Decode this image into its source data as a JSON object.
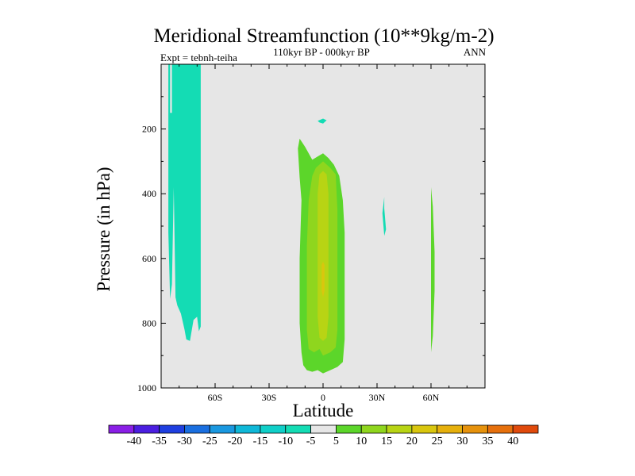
{
  "chart_data": {
    "type": "heatmap",
    "title": "Meridional Streamfunction (10**9kg/m-2)",
    "subtitle_left": "Expt = tebnh-teiha",
    "subtitle_center": "110kyr BP - 000kyr BP",
    "subtitle_right": "ANN",
    "xlabel": "Latitude",
    "ylabel": "Pressure (in hPa)",
    "xlim": [
      -90,
      90
    ],
    "ylim": [
      0,
      1000
    ],
    "y_reversed": true,
    "background_color": "#e6e6e6",
    "x_ticks": [
      {
        "value": -60,
        "label": "60S"
      },
      {
        "value": -30,
        "label": "30S"
      },
      {
        "value": 0,
        "label": "0"
      },
      {
        "value": 30,
        "label": "30N"
      },
      {
        "value": 60,
        "label": "60N"
      }
    ],
    "y_ticks": [
      {
        "value": 200,
        "label": "200"
      },
      {
        "value": 400,
        "label": "400"
      },
      {
        "value": 600,
        "label": "600"
      },
      {
        "value": 800,
        "label": "800"
      },
      {
        "value": 1000,
        "label": "1000"
      }
    ],
    "colorbar": {
      "levels": [
        -40,
        -35,
        -30,
        -25,
        -20,
        -15,
        -10,
        -5,
        5,
        10,
        15,
        20,
        25,
        30,
        35,
        40
      ],
      "colors": [
        "#8a1fe6",
        "#4b1ee0",
        "#1f3fe0",
        "#1a6fe0",
        "#1a98e0",
        "#0fb8d8",
        "#10cfc8",
        "#14dcb4",
        "#e6e6e6",
        "#5cd62a",
        "#8fd61e",
        "#b8d414",
        "#d9c60e",
        "#e6b00c",
        "#e6920c",
        "#e6700c",
        "#e04a0c"
      ]
    },
    "regions": [
      {
        "name": "sh-polar-negative",
        "level": "-10 to -5",
        "color": "#14dcb4",
        "points": [
          [
            -86,
            0
          ],
          [
            -85,
            0
          ],
          [
            -85,
            150
          ],
          [
            -84,
            150
          ],
          [
            -84,
            0
          ],
          [
            -76,
            0
          ],
          [
            -76,
            220
          ],
          [
            -76,
            0
          ],
          [
            -68,
            0
          ],
          [
            -68,
            810
          ],
          [
            -69,
            825
          ],
          [
            -70,
            780
          ],
          [
            -72,
            790
          ],
          [
            -74,
            855
          ],
          [
            -76,
            850
          ],
          [
            -77,
            820
          ],
          [
            -79,
            770
          ],
          [
            -81,
            745
          ],
          [
            -82,
            720
          ],
          [
            -83,
            380
          ],
          [
            -84,
            680
          ],
          [
            -85,
            725
          ],
          [
            -86,
            520
          ]
        ]
      },
      {
        "name": "equatorial-fill-5-10",
        "level": "5 to 10",
        "color": "#5cd62a",
        "points": [
          [
            -13,
            230
          ],
          [
            -10,
            255
          ],
          [
            -6,
            295
          ],
          [
            -3,
            285
          ],
          [
            0,
            275
          ],
          [
            3,
            290
          ],
          [
            6,
            310
          ],
          [
            9,
            345
          ],
          [
            11,
            420
          ],
          [
            12,
            520
          ],
          [
            12,
            700
          ],
          [
            12,
            850
          ],
          [
            11,
            920
          ],
          [
            8,
            935
          ],
          [
            4,
            945
          ],
          [
            0,
            955
          ],
          [
            -3,
            945
          ],
          [
            -6,
            950
          ],
          [
            -9,
            945
          ],
          [
            -11,
            930
          ],
          [
            -12,
            890
          ],
          [
            -13,
            800
          ],
          [
            -13,
            600
          ],
          [
            -12,
            420
          ],
          [
            -13,
            350
          ],
          [
            -14,
            260
          ]
        ]
      },
      {
        "name": "equatorial-fill-10-15",
        "level": "10 to 15",
        "color": "#8fd61e",
        "points": [
          [
            -4,
            320
          ],
          [
            0,
            300
          ],
          [
            4,
            320
          ],
          [
            7,
            340
          ],
          [
            8,
            450
          ],
          [
            8,
            650
          ],
          [
            8,
            820
          ],
          [
            7,
            875
          ],
          [
            4,
            890
          ],
          [
            0,
            900
          ],
          [
            -2,
            880
          ],
          [
            -5,
            890
          ],
          [
            -8,
            880
          ],
          [
            -9,
            820
          ],
          [
            -9,
            560
          ],
          [
            -8,
            420
          ],
          [
            -6,
            345
          ]
        ]
      },
      {
        "name": "equatorial-fill-15-20",
        "level": "15 to 20",
        "color": "#b8d414",
        "points": [
          [
            -2,
            340
          ],
          [
            0,
            330
          ],
          [
            2,
            340
          ],
          [
            3,
            400
          ],
          [
            3,
            600
          ],
          [
            3,
            780
          ],
          [
            2,
            845
          ],
          [
            0,
            855
          ],
          [
            -2,
            845
          ],
          [
            -3,
            780
          ],
          [
            -3,
            600
          ],
          [
            -3,
            400
          ]
        ]
      },
      {
        "name": "equatorial-fill-20-25",
        "level": "20 to 25",
        "color": "#d9c60e",
        "points": [
          [
            -0.8,
            620
          ],
          [
            0,
            610
          ],
          [
            0.8,
            620
          ],
          [
            0.8,
            700
          ],
          [
            0,
            720
          ],
          [
            -0.8,
            700
          ]
        ]
      },
      {
        "name": "upper-negative-spot",
        "level": "-10 to -5",
        "color": "#14dcb4",
        "points": [
          [
            -3,
            175
          ],
          [
            0,
            168
          ],
          [
            2,
            173
          ],
          [
            0,
            183
          ],
          [
            -2,
            180
          ]
        ]
      },
      {
        "name": "nh-30-negative-band",
        "level": "-10 to -5",
        "color": "#14dcb4",
        "points": [
          [
            34,
            365
          ],
          [
            34,
            445
          ],
          [
            35,
            510
          ],
          [
            34,
            530
          ],
          [
            33,
            460
          ],
          [
            34,
            410
          ]
        ]
      },
      {
        "name": "nh-60-positive-band",
        "level": "5 to 10",
        "color": "#5cd62a",
        "points": [
          [
            60,
            380
          ],
          [
            61,
            440
          ],
          [
            62,
            580
          ],
          [
            62,
            700
          ],
          [
            61,
            840
          ],
          [
            60,
            890
          ],
          [
            60,
            870
          ],
          [
            60,
            620
          ],
          [
            60,
            480
          ]
        ]
      }
    ]
  }
}
